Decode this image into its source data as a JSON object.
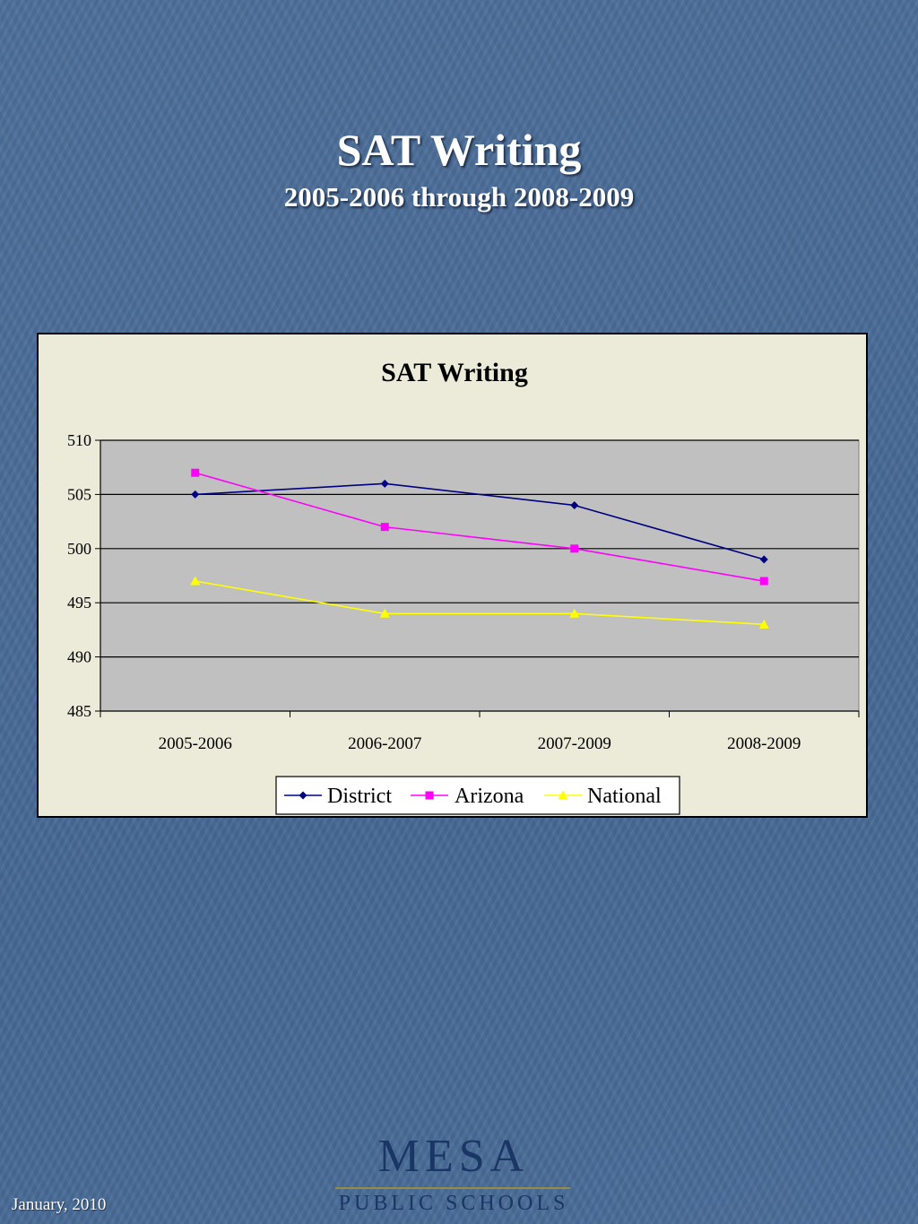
{
  "slide": {
    "title": "SAT Writing",
    "subtitle": "2005-2006 through 2008-2009",
    "footer_date": "January, 2010"
  },
  "logo": {
    "main": "MESA",
    "sub": "PUBLIC SCHOOLS"
  },
  "chart_data": {
    "type": "line",
    "title": "SAT Writing",
    "categories": [
      "2005-2006",
      "2006-2007",
      "2007-2009",
      "2008-2009"
    ],
    "ylim": [
      485,
      510
    ],
    "yticks": [
      485,
      490,
      495,
      500,
      505,
      510
    ],
    "grid": true,
    "legend": "bottom",
    "plot_background": "#c0c0c0",
    "series": [
      {
        "name": "District",
        "values": [
          505,
          506,
          504,
          499
        ],
        "color": "#000080",
        "marker": "diamond"
      },
      {
        "name": "Arizona",
        "values": [
          507,
          502,
          500,
          497
        ],
        "color": "#ff00ff",
        "marker": "square"
      },
      {
        "name": "National",
        "values": [
          497,
          494,
          494,
          493
        ],
        "color": "#ffff00",
        "marker": "triangle"
      }
    ]
  }
}
